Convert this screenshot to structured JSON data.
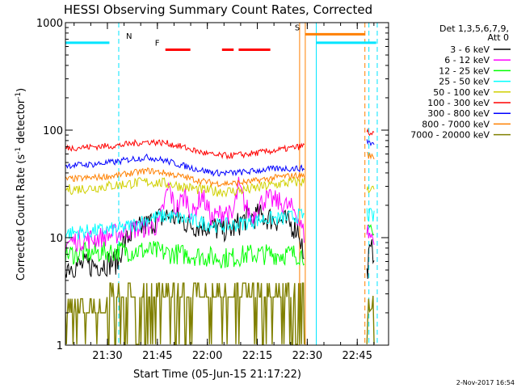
{
  "chart_data": {
    "type": "line",
    "title": "HESSI Observing Summary Count Rates, Corrected",
    "xlabel": "Start Time (05-Jun-15 21:17:22)",
    "ylabel": "Corrected Count Rate (s⁻¹ detector⁻¹)",
    "ylabel_base": "Corrected Count Rate (s",
    "ylabel_sup1": "-1",
    "ylabel_mid": " detector",
    "ylabel_sup2": "-1",
    "ylabel_end": ")",
    "x_unit": "minutes after 21:17:22 UT",
    "xlim": [
      0,
      97
    ],
    "ylim": [
      1,
      1000
    ],
    "yscale": "log",
    "x_ticks": [
      {
        "label": "21:30",
        "x": 12.6
      },
      {
        "label": "21:45",
        "x": 27.6
      },
      {
        "label": "22:00",
        "x": 42.6
      },
      {
        "label": "22:15",
        "x": 57.6
      },
      {
        "label": "22:30",
        "x": 72.6
      },
      {
        "label": "22:45",
        "x": 87.6
      }
    ],
    "y_ticks": [
      {
        "label": "1",
        "y": 1
      },
      {
        "label": "10",
        "y": 10
      },
      {
        "label": "100",
        "y": 100
      },
      {
        "label": "1000",
        "y": 1000
      }
    ],
    "legend_position": "right",
    "legend_header": [
      "Det 1,3,5,6,7,9,",
      "Att 0"
    ],
    "series": [
      {
        "name": "3 - 6 keV",
        "color": "#000000",
        "x": [
          0,
          8,
          16,
          17,
          20,
          24,
          28,
          31,
          34,
          38,
          42,
          46,
          50,
          54,
          58,
          62,
          66,
          68,
          70,
          71,
          72,
          90.5,
          91,
          92,
          93
        ],
        "y": [
          5.5,
          5.5,
          6,
          8.5,
          11,
          13,
          15,
          16,
          15,
          13,
          13,
          12,
          12,
          15,
          16,
          15,
          14,
          13,
          12,
          8.5,
          5,
          4.5,
          6.5,
          7.5,
          7.2
        ]
      },
      {
        "name": "6 - 12 keV",
        "color": "#ff00ff",
        "x": [
          0,
          5,
          10,
          16,
          20,
          25,
          28,
          31,
          33,
          36,
          38,
          41,
          44,
          48,
          50,
          52,
          54,
          56,
          58,
          60,
          63,
          66,
          69,
          71,
          72,
          90.5,
          91,
          92,
          93
        ],
        "y": [
          9,
          9.5,
          10,
          11,
          12,
          12.5,
          13,
          30,
          18,
          25,
          16,
          25,
          15,
          18,
          15,
          30,
          20,
          15,
          20,
          23,
          22,
          20,
          18,
          12,
          10,
          12,
          11,
          10,
          9
        ]
      },
      {
        "name": "12 - 25 keV",
        "color": "#00ff00",
        "x": [
          0,
          8,
          16,
          20,
          25,
          30,
          35,
          40,
          45,
          50,
          55,
          60,
          65,
          70,
          72,
          90.5,
          91,
          92,
          93
        ],
        "y": [
          7,
          7.2,
          7.5,
          7.5,
          7.6,
          7.2,
          7,
          6.8,
          6.5,
          6.5,
          7,
          7,
          7,
          7,
          7,
          10,
          11,
          10.5,
          10
        ]
      },
      {
        "name": "25 - 50 keV",
        "color": "#00ffff",
        "x": [
          0,
          8,
          16,
          20,
          25,
          30,
          35,
          40,
          45,
          50,
          55,
          60,
          65,
          70,
          72,
          90.5,
          91,
          92,
          93
        ],
        "y": [
          11,
          11.5,
          12,
          13,
          15,
          16,
          15,
          14,
          13,
          13,
          14,
          15,
          15,
          16,
          16,
          17,
          16,
          16,
          15
        ]
      },
      {
        "name": "50 - 100 keV",
        "color": "#d0d000",
        "x": [
          0,
          8,
          16,
          20,
          25,
          30,
          35,
          40,
          45,
          50,
          55,
          60,
          65,
          70,
          72,
          90.5,
          91,
          92,
          93
        ],
        "y": [
          28,
          29,
          31,
          32,
          33,
          32,
          30,
          28,
          27,
          27,
          28,
          30,
          32,
          33,
          33,
          30,
          29,
          28,
          28
        ]
      },
      {
        "name": "100 - 300 keV",
        "color": "#ff0000",
        "x": [
          0,
          8,
          16,
          20,
          25,
          30,
          35,
          40,
          45,
          50,
          55,
          60,
          65,
          70,
          72,
          90.5,
          91,
          92,
          93
        ],
        "y": [
          68,
          70,
          72,
          75,
          78,
          76,
          70,
          63,
          58,
          58,
          60,
          63,
          66,
          70,
          72,
          98,
          95,
          92,
          90
        ]
      },
      {
        "name": "300 - 800 keV",
        "color": "#0000ff",
        "x": [
          0,
          8,
          16,
          20,
          25,
          30,
          35,
          40,
          45,
          50,
          55,
          60,
          65,
          70,
          72,
          90.5,
          91,
          92,
          93
        ],
        "y": [
          47,
          48,
          51,
          54,
          56,
          52,
          47,
          43,
          40,
          40,
          41,
          43,
          44,
          44,
          44,
          80,
          78,
          75,
          72
        ]
      },
      {
        "name": "800 - 7000 keV",
        "color": "#ff8000",
        "x": [
          0,
          8,
          16,
          20,
          25,
          30,
          35,
          40,
          45,
          50,
          55,
          60,
          65,
          70,
          72,
          90.5,
          91,
          92,
          93
        ],
        "y": [
          35,
          36,
          38,
          40,
          42,
          40,
          37,
          34,
          32,
          32,
          33,
          35,
          37,
          38,
          38,
          60,
          58,
          57,
          56
        ]
      },
      {
        "name": "7000 - 20000 keV",
        "color": "#808000",
        "x": [
          0,
          6,
          12,
          12.5,
          20,
          30,
          40,
          50,
          60,
          65,
          70,
          72,
          90.5,
          91,
          92,
          93
        ],
        "y": [
          2,
          2,
          2,
          2.8,
          2.8,
          2.8,
          2.8,
          2.8,
          2.8,
          2.8,
          2.8,
          2.8,
          1.5,
          2,
          2.2,
          2
        ]
      }
    ],
    "flag_bars": [
      {
        "letter": "N",
        "color": "#00e5ff",
        "y": 650,
        "segments": [
          [
            0,
            13.2
          ],
          [
            75.2,
            93.3
          ]
        ]
      },
      {
        "letter": "F",
        "color": "#ff0000",
        "y": 560,
        "segments": [
          [
            30,
            37.5
          ],
          [
            47,
            50.5
          ],
          [
            52,
            61.5
          ]
        ]
      },
      {
        "letter": "S",
        "color": "#ff8000",
        "y": 780,
        "segments": [
          [
            72,
            90
          ]
        ]
      }
    ],
    "vertical_lines": [
      {
        "x": 16,
        "color": "#00e5ff",
        "style": "dashed"
      },
      {
        "x": 70.3,
        "color": "#ff8000",
        "style": "solid"
      },
      {
        "x": 72,
        "color": "#ff8000",
        "style": "solid"
      },
      {
        "x": 75.3,
        "color": "#00e5ff",
        "style": "solid"
      },
      {
        "x": 89.9,
        "color": "#ff8000",
        "style": "dashed"
      },
      {
        "x": 91.1,
        "color": "#00e5ff",
        "style": "dashed"
      },
      {
        "x": 93.6,
        "color": "#00e5ff",
        "style": "dashed"
      }
    ],
    "grid": false,
    "footer_date": "2-Nov-2017 16:54"
  }
}
